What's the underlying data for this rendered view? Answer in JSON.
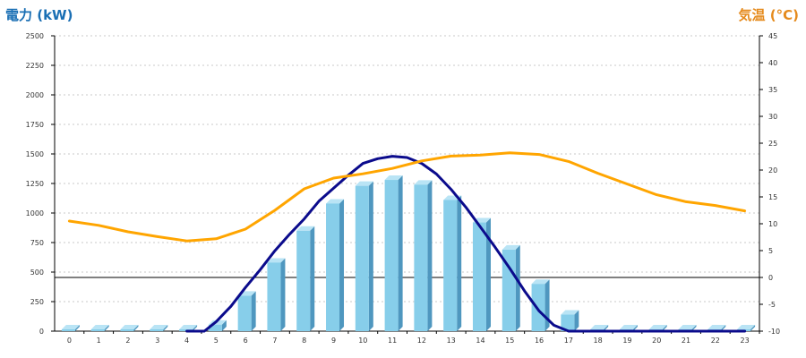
{
  "chart_data": {
    "type": "bar",
    "x": [
      "0",
      "1",
      "2",
      "3",
      "4",
      "5",
      "6",
      "7",
      "8",
      "9",
      "10",
      "11",
      "12",
      "13",
      "14",
      "15",
      "16",
      "17",
      "18",
      "19",
      "20",
      "21",
      "22",
      "23"
    ],
    "left_axis": {
      "title": "電力 (kW)",
      "ylim": [
        0,
        2500
      ],
      "ticks": [
        "0",
        "250",
        "500",
        "750",
        "1000",
        "1250",
        "1500",
        "1750",
        "2000",
        "2250",
        "2500"
      ]
    },
    "right_axis": {
      "title": "気温 (°C)",
      "ylim": [
        -10,
        45
      ],
      "ticks": [
        "-10",
        "-5",
        "0",
        "5",
        "10",
        "15",
        "20",
        "25",
        "30",
        "35",
        "40",
        "45"
      ]
    },
    "series": [
      {
        "kind": "bar",
        "axis": "left",
        "values": [
          0,
          0,
          0,
          0,
          0,
          55,
          300,
          580,
          850,
          1080,
          1230,
          1280,
          1240,
          1110,
          920,
          690,
          400,
          140,
          0,
          0,
          0,
          0,
          0,
          0
        ]
      },
      {
        "kind": "line",
        "axis": "left",
        "x": [
          4,
          4.6,
          5,
          5.5,
          6,
          6.5,
          7,
          7.5,
          8,
          8.5,
          9,
          9.5,
          10,
          10.5,
          11,
          11.5,
          12,
          12.5,
          13,
          13.5,
          14,
          14.5,
          15,
          15.5,
          16,
          16.5,
          17,
          17.5,
          18,
          19,
          20,
          21,
          22,
          23
        ],
        "values": [
          0,
          0,
          80,
          210,
          370,
          520,
          680,
          820,
          950,
          1100,
          1210,
          1320,
          1420,
          1460,
          1480,
          1470,
          1420,
          1330,
          1200,
          1050,
          880,
          710,
          530,
          340,
          170,
          50,
          0,
          0,
          0,
          0,
          0,
          0,
          0,
          0
        ]
      },
      {
        "kind": "line",
        "axis": "right",
        "x": [
          0,
          1,
          2,
          3,
          4,
          5,
          6,
          7,
          8,
          9,
          10,
          11,
          12,
          13,
          14,
          15,
          16,
          17,
          18,
          19,
          20,
          21,
          22,
          23
        ],
        "values": [
          10.5,
          9.7,
          8.5,
          7.6,
          6.8,
          7.2,
          9,
          12.5,
          16.5,
          18.5,
          19.3,
          20.3,
          21.7,
          22.6,
          22.8,
          23.2,
          22.9,
          21.6,
          19.4,
          17.4,
          15.4,
          14.1,
          13.4,
          12.4
        ]
      }
    ],
    "grid": true,
    "zero_line_right": true,
    "colors": {
      "bar": "#87ceea",
      "bar_side": "#4f97bf",
      "bar_top": "#b9e4f5",
      "power_line": "#0b0b8c",
      "temp_line": "#ffa500",
      "left_title": "#1a6fb4",
      "right_title": "#e58a1c",
      "grid": "#c8c8c8"
    }
  }
}
